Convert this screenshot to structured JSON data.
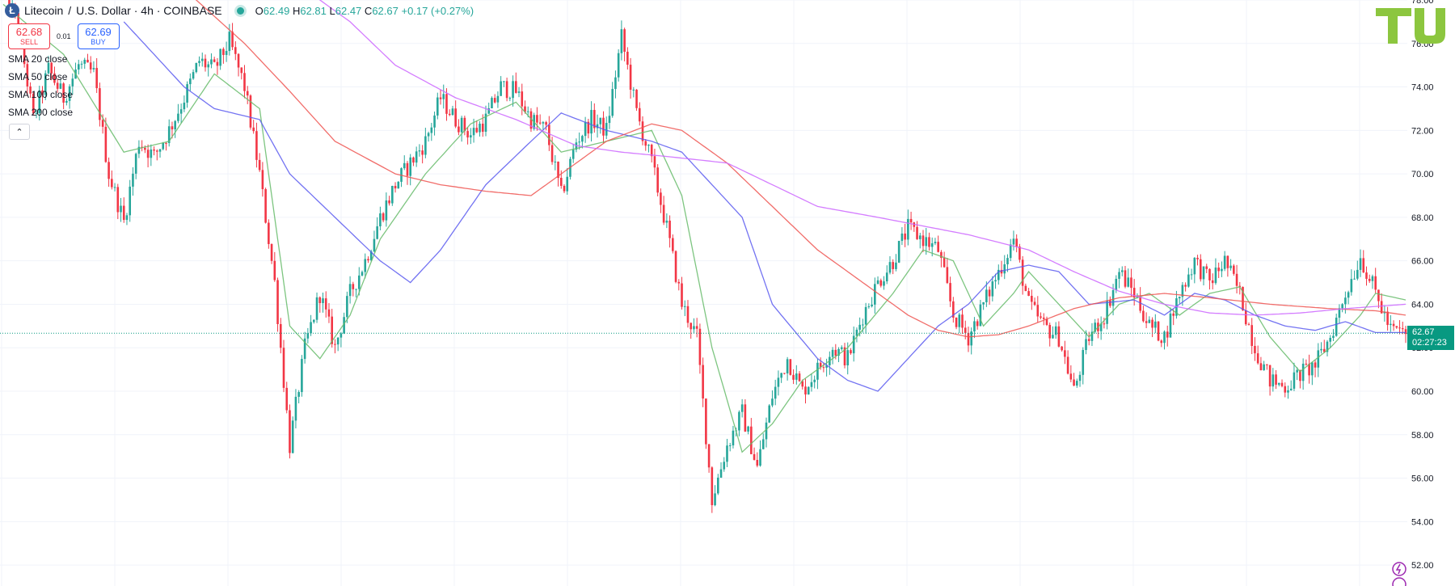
{
  "header": {
    "symbol": "Litecoin",
    "separator": "/",
    "quote": "U.S. Dollar · 4h · COINBASE",
    "ohlc": {
      "o_label": "O",
      "o": "62.49",
      "h_label": "H",
      "h": "62.81",
      "l_label": "L",
      "l": "62.47",
      "c_label": "C",
      "c": "62.67",
      "change": "+0.17 (+0.27%)"
    }
  },
  "trade": {
    "sell_price": "62.68",
    "sell_label": "SELL",
    "spread": "0.01",
    "buy_price": "62.69",
    "buy_label": "BUY"
  },
  "indicators": [
    "SMA 20 close",
    "SMA 50 close",
    "SMA 100 close",
    "SMA 200 close"
  ],
  "price_tag": {
    "price": "62.67",
    "countdown": "02:27:23"
  },
  "logo": {
    "text": "TU"
  },
  "colors": {
    "up": "#26a69a",
    "down": "#f23645",
    "sma20": "#66bb6a",
    "sma50": "#5b5bf0",
    "sma100": "#ef5350",
    "sma200": "#cc66ff",
    "logo": "#8cc63f"
  },
  "chart_data": {
    "type": "candlestick",
    "timeframe": "4h",
    "ylim": [
      51,
      78
    ],
    "yticks": [
      "78.00",
      "76.00",
      "74.00",
      "72.00",
      "70.00",
      "68.00",
      "66.00",
      "64.00",
      "62.00",
      "60.00",
      "58.00",
      "56.00",
      "54.00",
      "52.00"
    ],
    "last_price": 62.67,
    "grid": true,
    "price_path": [
      [
        0,
        78.5
      ],
      [
        5,
        76.8
      ],
      [
        10,
        72.5
      ],
      [
        15,
        74.8
      ],
      [
        20,
        73.5
      ],
      [
        25,
        75.0
      ],
      [
        30,
        74.6
      ],
      [
        35,
        70.0
      ],
      [
        40,
        67.8
      ],
      [
        45,
        71.5
      ],
      [
        50,
        70.8
      ],
      [
        55,
        72.0
      ],
      [
        60,
        73.5
      ],
      [
        65,
        75.2
      ],
      [
        70,
        74.8
      ],
      [
        75,
        76.1
      ],
      [
        80,
        74.0
      ],
      [
        85,
        70.0
      ],
      [
        90,
        65.0
      ],
      [
        95,
        57.5
      ],
      [
        100,
        62.0
      ],
      [
        105,
        64.5
      ],
      [
        110,
        62.0
      ],
      [
        115,
        64.5
      ],
      [
        120,
        66.0
      ],
      [
        125,
        68.0
      ],
      [
        130,
        69.5
      ],
      [
        135,
        70.5
      ],
      [
        140,
        71.5
      ],
      [
        145,
        73.5
      ],
      [
        150,
        72.5
      ],
      [
        155,
        71.8
      ],
      [
        160,
        72.5
      ],
      [
        165,
        74.0
      ],
      [
        170,
        73.8
      ],
      [
        175,
        72.5
      ],
      [
        180,
        72.0
      ],
      [
        185,
        69.0
      ],
      [
        190,
        71.5
      ],
      [
        195,
        72.5
      ],
      [
        200,
        72.0
      ],
      [
        205,
        76.3
      ],
      [
        210,
        72.8
      ],
      [
        215,
        70.5
      ],
      [
        220,
        67.5
      ],
      [
        225,
        64.0
      ],
      [
        230,
        62.5
      ],
      [
        235,
        55.0
      ],
      [
        240,
        57.5
      ],
      [
        245,
        59.0
      ],
      [
        250,
        56.5
      ],
      [
        255,
        59.8
      ],
      [
        260,
        61.5
      ],
      [
        265,
        60.0
      ],
      [
        270,
        61.0
      ],
      [
        275,
        62.0
      ],
      [
        280,
        61.5
      ],
      [
        285,
        63.5
      ],
      [
        290,
        65.0
      ],
      [
        295,
        66.0
      ],
      [
        300,
        67.5
      ],
      [
        305,
        67.0
      ],
      [
        310,
        66.5
      ],
      [
        315,
        63.5
      ],
      [
        320,
        62.5
      ],
      [
        325,
        64.0
      ],
      [
        330,
        65.5
      ],
      [
        335,
        67.0
      ],
      [
        340,
        64.0
      ],
      [
        345,
        63.0
      ],
      [
        350,
        62.5
      ],
      [
        355,
        60.0
      ],
      [
        360,
        62.5
      ],
      [
        365,
        63.5
      ],
      [
        370,
        65.5
      ],
      [
        375,
        64.5
      ],
      [
        380,
        63.0
      ],
      [
        385,
        62.5
      ],
      [
        390,
        64.5
      ],
      [
        395,
        66.0
      ],
      [
        400,
        65.0
      ],
      [
        405,
        66.0
      ],
      [
        410,
        64.5
      ],
      [
        415,
        62.0
      ],
      [
        420,
        60.5
      ],
      [
        425,
        60.2
      ],
      [
        430,
        60.8
      ],
      [
        435,
        61.2
      ],
      [
        440,
        62.5
      ],
      [
        445,
        64.5
      ],
      [
        450,
        66.2
      ],
      [
        455,
        64.5
      ],
      [
        460,
        62.8
      ],
      [
        465,
        62.67
      ]
    ],
    "sma20": [
      [
        0,
        77.8
      ],
      [
        20,
        75.5
      ],
      [
        40,
        71.0
      ],
      [
        55,
        71.5
      ],
      [
        70,
        74.6
      ],
      [
        85,
        73.0
      ],
      [
        95,
        63.0
      ],
      [
        105,
        61.5
      ],
      [
        115,
        63.5
      ],
      [
        125,
        67.0
      ],
      [
        140,
        70.0
      ],
      [
        155,
        72.3
      ],
      [
        170,
        73.3
      ],
      [
        185,
        71.0
      ],
      [
        200,
        71.5
      ],
      [
        215,
        72.0
      ],
      [
        225,
        69.0
      ],
      [
        235,
        62.0
      ],
      [
        245,
        57.2
      ],
      [
        255,
        58.5
      ],
      [
        265,
        60.5
      ],
      [
        280,
        62.0
      ],
      [
        295,
        64.5
      ],
      [
        305,
        66.5
      ],
      [
        315,
        66.0
      ],
      [
        325,
        63.0
      ],
      [
        335,
        64.5
      ],
      [
        340,
        65.5
      ],
      [
        350,
        64.0
      ],
      [
        360,
        62.5
      ],
      [
        370,
        64.0
      ],
      [
        380,
        64.5
      ],
      [
        390,
        63.5
      ],
      [
        400,
        64.5
      ],
      [
        410,
        64.8
      ],
      [
        420,
        62.5
      ],
      [
        430,
        60.9
      ],
      [
        440,
        62.0
      ],
      [
        450,
        63.5
      ],
      [
        455,
        64.5
      ],
      [
        465,
        64.2
      ]
    ],
    "sma50": [
      [
        40,
        77.0
      ],
      [
        60,
        74.0
      ],
      [
        70,
        73.0
      ],
      [
        85,
        72.5
      ],
      [
        95,
        70.0
      ],
      [
        110,
        68.0
      ],
      [
        125,
        66.0
      ],
      [
        135,
        65.0
      ],
      [
        145,
        66.5
      ],
      [
        160,
        69.5
      ],
      [
        175,
        71.5
      ],
      [
        185,
        72.8
      ],
      [
        200,
        72.0
      ],
      [
        215,
        71.5
      ],
      [
        225,
        71.0
      ],
      [
        245,
        68.0
      ],
      [
        255,
        64.0
      ],
      [
        270,
        61.5
      ],
      [
        280,
        60.5
      ],
      [
        290,
        60.0
      ],
      [
        300,
        61.5
      ],
      [
        310,
        63.0
      ],
      [
        320,
        64.0
      ],
      [
        330,
        65.5
      ],
      [
        340,
        65.8
      ],
      [
        350,
        65.5
      ],
      [
        360,
        64.0
      ],
      [
        375,
        64.2
      ],
      [
        385,
        63.5
      ],
      [
        395,
        64.5
      ],
      [
        405,
        64.2
      ],
      [
        415,
        63.5
      ],
      [
        425,
        63.0
      ],
      [
        435,
        62.8
      ],
      [
        445,
        63.2
      ],
      [
        455,
        62.7
      ],
      [
        465,
        62.7
      ]
    ],
    "sma100": [
      [
        60,
        78.5
      ],
      [
        80,
        76.0
      ],
      [
        95,
        73.8
      ],
      [
        110,
        71.5
      ],
      [
        130,
        70.0
      ],
      [
        145,
        69.5
      ],
      [
        160,
        69.2
      ],
      [
        175,
        69.0
      ],
      [
        185,
        70.0
      ],
      [
        200,
        71.5
      ],
      [
        215,
        72.3
      ],
      [
        225,
        72.0
      ],
      [
        240,
        70.5
      ],
      [
        255,
        68.5
      ],
      [
        270,
        66.5
      ],
      [
        285,
        65.0
      ],
      [
        300,
        63.5
      ],
      [
        310,
        62.8
      ],
      [
        320,
        62.5
      ],
      [
        330,
        62.6
      ],
      [
        340,
        63.0
      ],
      [
        355,
        63.8
      ],
      [
        370,
        64.3
      ],
      [
        385,
        64.5
      ],
      [
        400,
        64.3
      ],
      [
        420,
        64.0
      ],
      [
        440,
        63.8
      ],
      [
        455,
        63.7
      ],
      [
        465,
        63.5
      ]
    ],
    "sma200": [
      [
        100,
        78.5
      ],
      [
        115,
        77.0
      ],
      [
        130,
        75.0
      ],
      [
        150,
        73.5
      ],
      [
        170,
        72.5
      ],
      [
        190,
        71.3
      ],
      [
        205,
        71.0
      ],
      [
        220,
        70.8
      ],
      [
        240,
        70.5
      ],
      [
        255,
        69.5
      ],
      [
        270,
        68.5
      ],
      [
        290,
        68.0
      ],
      [
        305,
        67.6
      ],
      [
        320,
        67.2
      ],
      [
        340,
        66.5
      ],
      [
        355,
        65.5
      ],
      [
        370,
        64.6
      ],
      [
        385,
        64.0
      ],
      [
        400,
        63.6
      ],
      [
        415,
        63.5
      ],
      [
        430,
        63.6
      ],
      [
        445,
        63.8
      ],
      [
        465,
        64.0
      ]
    ]
  }
}
